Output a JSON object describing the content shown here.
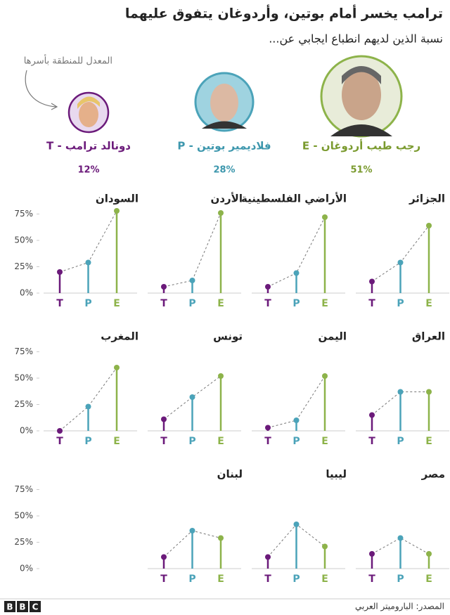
{
  "header": {
    "title": "ترامب يخسر أمام بوتين، وأردوغان يتفوق عليهما",
    "subtitle": "نسبة الذين لديهم انطباع ايجابي عن...",
    "note": "المعدل للمنطقة بأسرها"
  },
  "leaders": [
    {
      "name": "رجب طيب أردوغان - E",
      "value": 51,
      "value_label": "51%",
      "color": "#7a9a2e"
    },
    {
      "name": "فلاديمير بوتين - P",
      "value": 28,
      "value_label": "28%",
      "color": "#3d97ad"
    },
    {
      "name": "دونالد ترامب - T",
      "value": 12,
      "value_label": "12%",
      "color": "#6b1a7a"
    }
  ],
  "chart_data": [
    {
      "type": "lollipop",
      "title": "الجزائر",
      "categories": [
        "T",
        "P",
        "E"
      ],
      "values": [
        11,
        29,
        64
      ],
      "colors": [
        "#6b1a7a",
        "#4ba3b9",
        "#8db34a"
      ],
      "ylim": [
        0,
        80
      ]
    },
    {
      "type": "lollipop",
      "title": "الأراضي الفلسطينية",
      "categories": [
        "T",
        "P",
        "E"
      ],
      "values": [
        6,
        19,
        72
      ],
      "colors": [
        "#6b1a7a",
        "#4ba3b9",
        "#8db34a"
      ],
      "ylim": [
        0,
        80
      ]
    },
    {
      "type": "lollipop",
      "title": "الأردن",
      "categories": [
        "T",
        "P",
        "E"
      ],
      "values": [
        6,
        12,
        76
      ],
      "colors": [
        "#6b1a7a",
        "#4ba3b9",
        "#8db34a"
      ],
      "ylim": [
        0,
        80
      ]
    },
    {
      "type": "lollipop",
      "title": "السودان",
      "categories": [
        "T",
        "P",
        "E"
      ],
      "values": [
        20,
        29,
        78
      ],
      "colors": [
        "#6b1a7a",
        "#4ba3b9",
        "#8db34a"
      ],
      "ylim": [
        0,
        80
      ],
      "yticks": [
        {
          "value": 0,
          "label": "0%"
        },
        {
          "value": 25,
          "label": "25%"
        },
        {
          "value": 50,
          "label": "50%"
        },
        {
          "value": 75,
          "label": "75%"
        }
      ]
    },
    {
      "type": "lollipop",
      "title": "العراق",
      "categories": [
        "T",
        "P",
        "E"
      ],
      "values": [
        15,
        37,
        37
      ],
      "colors": [
        "#6b1a7a",
        "#4ba3b9",
        "#8db34a"
      ],
      "ylim": [
        0,
        80
      ]
    },
    {
      "type": "lollipop",
      "title": "اليمن",
      "categories": [
        "T",
        "P",
        "E"
      ],
      "values": [
        3,
        10,
        52
      ],
      "colors": [
        "#6b1a7a",
        "#4ba3b9",
        "#8db34a"
      ],
      "ylim": [
        0,
        80
      ]
    },
    {
      "type": "lollipop",
      "title": "تونس",
      "categories": [
        "T",
        "P",
        "E"
      ],
      "values": [
        11,
        32,
        52
      ],
      "colors": [
        "#6b1a7a",
        "#4ba3b9",
        "#8db34a"
      ],
      "ylim": [
        0,
        80
      ]
    },
    {
      "type": "lollipop",
      "title": "المغرب",
      "categories": [
        "T",
        "P",
        "E"
      ],
      "values": [
        0,
        23,
        60
      ],
      "colors": [
        "#6b1a7a",
        "#4ba3b9",
        "#8db34a"
      ],
      "ylim": [
        0,
        80
      ],
      "yticks": [
        {
          "value": 0,
          "label": "0%"
        },
        {
          "value": 25,
          "label": "25%"
        },
        {
          "value": 50,
          "label": "50%"
        },
        {
          "value": 75,
          "label": "75%"
        }
      ]
    },
    {
      "type": "lollipop",
      "title": "مصر",
      "categories": [
        "T",
        "P",
        "E"
      ],
      "values": [
        14,
        29,
        14
      ],
      "colors": [
        "#6b1a7a",
        "#4ba3b9",
        "#8db34a"
      ],
      "ylim": [
        0,
        80
      ]
    },
    {
      "type": "lollipop",
      "title": "ليبيا",
      "categories": [
        "T",
        "P",
        "E"
      ],
      "values": [
        11,
        42,
        21
      ],
      "colors": [
        "#6b1a7a",
        "#4ba3b9",
        "#8db34a"
      ],
      "ylim": [
        0,
        80
      ]
    },
    {
      "type": "lollipop",
      "title": "لبنان",
      "categories": [
        "T",
        "P",
        "E"
      ],
      "values": [
        11,
        36,
        29
      ],
      "colors": [
        "#6b1a7a",
        "#4ba3b9",
        "#8db34a"
      ],
      "ylim": [
        0,
        80
      ],
      "yticks": [
        {
          "value": 0,
          "label": "0%"
        },
        {
          "value": 25,
          "label": "25%"
        },
        {
          "value": 50,
          "label": "50%"
        },
        {
          "value": 75,
          "label": "75%"
        }
      ]
    }
  ],
  "footer": {
    "logo": [
      "B",
      "B",
      "C"
    ],
    "source": "المصدر: الباروميتر العربي"
  }
}
